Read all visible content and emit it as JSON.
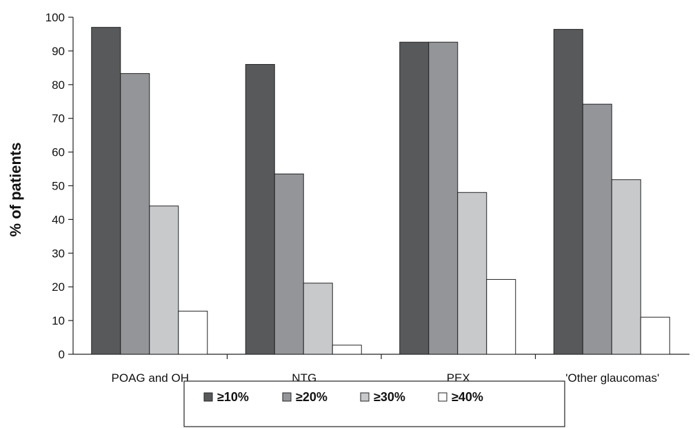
{
  "chart_data": {
    "type": "bar",
    "ylabel": "% of patients",
    "xlabel": "",
    "ylim": [
      0,
      100
    ],
    "yticks": [
      0,
      10,
      20,
      30,
      40,
      50,
      60,
      70,
      80,
      90,
      100
    ],
    "categories": [
      "POAG and OH",
      "NTG",
      "PEX",
      "'Other glaucomas'"
    ],
    "series": [
      {
        "name": "≥10%",
        "color": "#58595b",
        "values": [
          97,
          86,
          92.6,
          96.4
        ]
      },
      {
        "name": "≥20%",
        "color": "#939598",
        "values": [
          83.3,
          53.5,
          92.6,
          74.2
        ]
      },
      {
        "name": "≥30%",
        "color": "#c8c9cb",
        "values": [
          44,
          21.1,
          48,
          51.8
        ]
      },
      {
        "name": "≥40%",
        "color": "#ffffff",
        "values": [
          12.8,
          2.7,
          22.2,
          11
        ]
      }
    ],
    "legend_position": "bottom",
    "grid": false
  }
}
